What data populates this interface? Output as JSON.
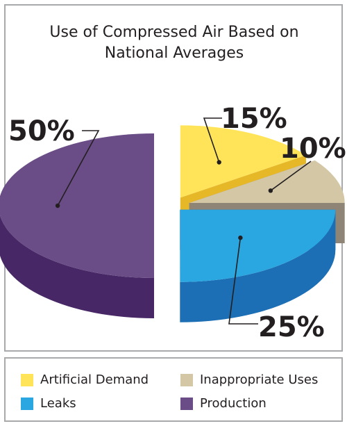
{
  "chart_data": {
    "type": "pie",
    "title": "Use of Compressed Air Based on National Averages",
    "title_lines": [
      "Use of Compressed Air Based on",
      "National Averages"
    ],
    "categories": [
      "Artificial Demand",
      "Inappropriate Uses",
      "Leaks",
      "Production"
    ],
    "values": [
      15,
      10,
      25,
      50
    ],
    "labels": [
      "15%",
      "10%",
      "25%",
      "50%"
    ],
    "colors": [
      "#ffe45a",
      "#d3c7a5",
      "#2aa6e0",
      "#6a4d86"
    ],
    "side_colors": [
      "#e6b828",
      "#8f8576",
      "#1c6fb4",
      "#472765"
    ],
    "style": "3d-exploded",
    "legend_position": "bottom"
  }
}
